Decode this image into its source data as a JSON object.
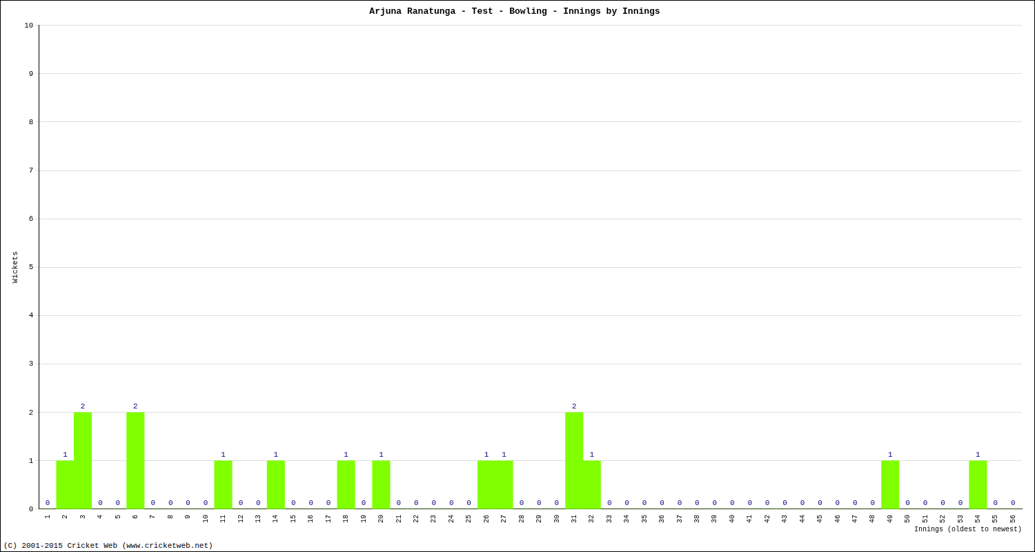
{
  "chart_data": {
    "type": "bar",
    "title": "Arjuna Ranatunga - Test - Bowling - Innings by Innings",
    "x_label": "Innings (oldest to newest)",
    "y_label": "Wickets",
    "footer": "(C) 2001-2015 Cricket Web (www.cricketweb.net)",
    "categories": [
      "1",
      "2",
      "3",
      "4",
      "5",
      "6",
      "7",
      "8",
      "9",
      "10",
      "11",
      "12",
      "13",
      "14",
      "15",
      "16",
      "17",
      "18",
      "19",
      "20",
      "21",
      "22",
      "23",
      "24",
      "25",
      "26",
      "27",
      "28",
      "29",
      "30",
      "31",
      "32",
      "33",
      "34",
      "35",
      "36",
      "37",
      "38",
      "39",
      "40",
      "41",
      "42",
      "43",
      "44",
      "45",
      "46",
      "47",
      "48",
      "49",
      "50",
      "51",
      "52",
      "53",
      "54",
      "55",
      "56"
    ],
    "values": [
      0,
      1,
      2,
      0,
      0,
      2,
      0,
      0,
      0,
      0,
      1,
      0,
      0,
      1,
      0,
      0,
      0,
      1,
      0,
      1,
      0,
      0,
      0,
      0,
      0,
      1,
      1,
      0,
      0,
      0,
      2,
      1,
      0,
      0,
      0,
      0,
      0,
      0,
      0,
      0,
      0,
      0,
      0,
      0,
      0,
      0,
      0,
      0,
      1,
      0,
      0,
      0,
      0,
      1,
      0,
      0
    ],
    "color": "#80ff00",
    "ylim": [
      0,
      10
    ],
    "yticks": [
      0,
      1,
      2,
      3,
      4,
      5,
      6,
      7,
      8,
      9,
      10
    ],
    "grid": true,
    "data_labels": true
  }
}
